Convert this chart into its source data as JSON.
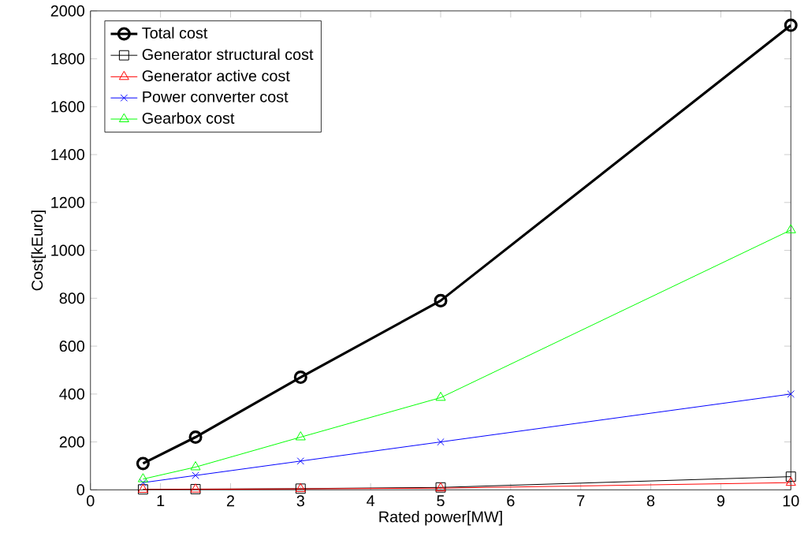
{
  "chart_data": {
    "type": "line",
    "xlabel": "Rated power[MW]",
    "ylabel": "Cost[kEuro]",
    "x": [
      0.75,
      1.5,
      3,
      5,
      10
    ],
    "series": [
      {
        "name": "Total cost",
        "color": "#000000",
        "marker": "circle",
        "values": [
          110,
          220,
          470,
          790,
          1940
        ]
      },
      {
        "name": "Generator structural cost",
        "color": "#000000",
        "marker": "square",
        "values": [
          2,
          3,
          5,
          10,
          55
        ]
      },
      {
        "name": "Generator active cost",
        "color": "#ff0000",
        "marker": "triangle",
        "values": [
          1,
          2,
          4,
          7,
          30
        ]
      },
      {
        "name": "Power converter cost",
        "color": "#0000ff",
        "marker": "cross",
        "values": [
          30,
          60,
          120,
          200,
          400
        ]
      },
      {
        "name": "Gearbox cost",
        "color": "#00ff00",
        "marker": "triangle",
        "values": [
          45,
          95,
          220,
          385,
          1085
        ]
      }
    ],
    "xlim": [
      0,
      10
    ],
    "ylim": [
      0,
      2000
    ],
    "xticks": [
      0,
      1,
      2,
      3,
      4,
      5,
      6,
      7,
      8,
      9,
      10
    ],
    "yticks": [
      0,
      200,
      400,
      600,
      800,
      1000,
      1200,
      1400,
      1600,
      1800,
      2000
    ],
    "legend": "top left",
    "grid": false,
    "line_style": "solid"
  }
}
